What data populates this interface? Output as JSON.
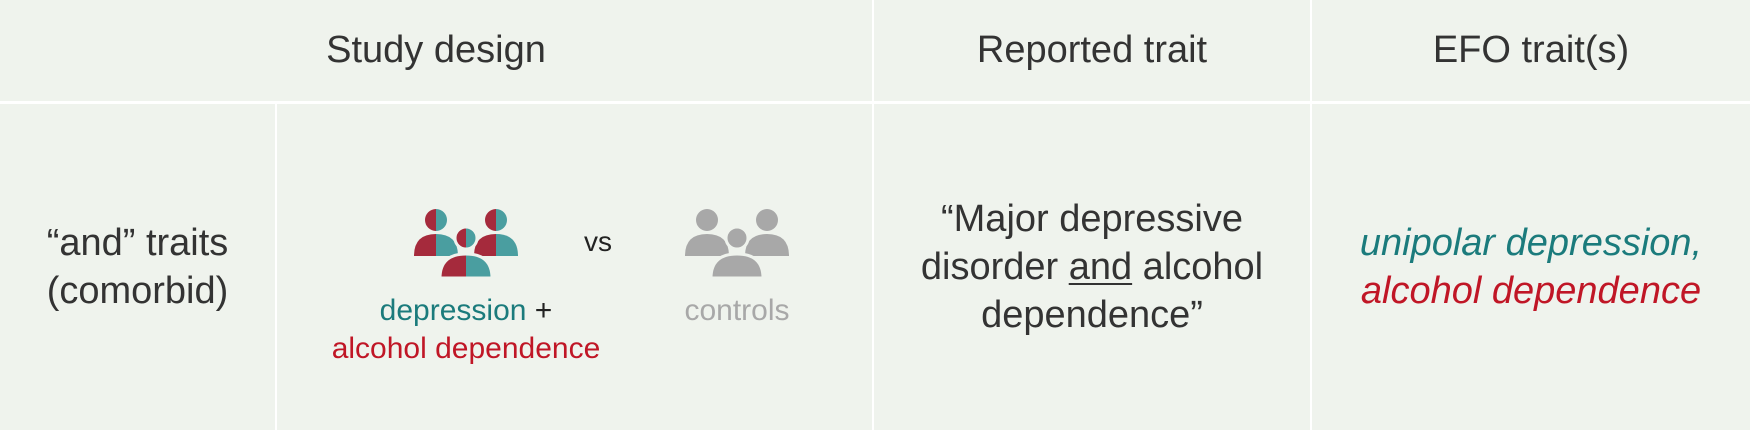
{
  "header": {
    "study_design": "Study design",
    "reported_trait": "Reported trait",
    "efo_traits": "EFO trait(s)"
  },
  "row": {
    "label_line1": "“and” traits",
    "label_line2": "(comorbid)",
    "cases_term1": "depression",
    "cases_plus": "+",
    "cases_term2": "alcohol dependence",
    "vs": "vs",
    "controls": "controls",
    "reported_line1": "“Major depressive",
    "reported_line2_pre": "disorder ",
    "reported_line2_and": "and",
    "reported_line2_post": " alcohol",
    "reported_line3": "dependence”",
    "efo_line1": "unipolar depression,",
    "efo_line2": "alcohol dependence"
  },
  "icons": {
    "cases": "people-group-icon",
    "controls": "people-group-icon"
  },
  "colors": {
    "background": "#eff3ed",
    "teal": "#1b7b7c",
    "icon_teal": "#4a9ea0",
    "red": "#c01626",
    "icon_red": "#a52a3c",
    "grey": "#a8a8a8"
  }
}
